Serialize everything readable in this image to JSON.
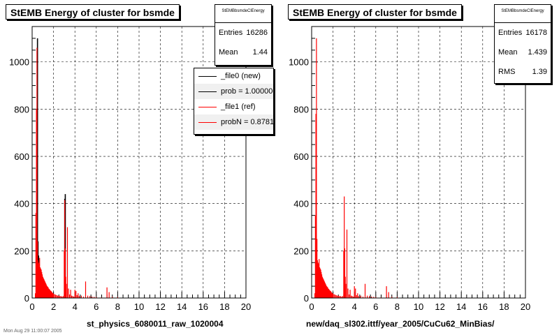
{
  "chart_data": [
    {
      "type": "bar",
      "title": "StEMB Energy of cluster for bsmde",
      "xlabel": "st_physics_6080011_raw_1020004",
      "ylabel": "",
      "xlim": [
        0,
        20
      ],
      "ylim": [
        0,
        1150
      ],
      "xticks": [
        0,
        2,
        4,
        6,
        8,
        10,
        12,
        14,
        16,
        18,
        20
      ],
      "yticks": [
        0,
        200,
        400,
        600,
        800,
        1000
      ],
      "grid": true,
      "stats": {
        "name": "StEMBbsmdeClEnergy",
        "rows": [
          {
            "label": "Entries",
            "value": "16286"
          },
          {
            "label": "Mean",
            "value": "1.44"
          }
        ]
      },
      "legend": {
        "placement": "top-right",
        "entries": [
          {
            "label": "_file0 (new)",
            "color": "#000000"
          },
          {
            "label": "prob = 1.000000",
            "color": "#000000"
          },
          {
            "label": "_file1 (ref)",
            "color": "#ff0000"
          },
          {
            "label": "probN = 0.878143",
            "color": "#ff0000"
          }
        ]
      },
      "series": [
        {
          "name": "_file0 (new)",
          "color": "#000000",
          "x": [
            0.45,
            0.5,
            0.55,
            0.6,
            3.05,
            3.1
          ],
          "values": [
            750,
            1100,
            240,
            180,
            420,
            440
          ]
        },
        {
          "name": "_file1 (ref)",
          "color": "#ff0000",
          "x": [
            0.3,
            0.35,
            0.4,
            0.45,
            0.5,
            0.55,
            0.6,
            0.65,
            0.7,
            0.75,
            0.8,
            0.85,
            0.9,
            0.95,
            1.0,
            1.05,
            1.1,
            1.15,
            1.2,
            1.25,
            1.3,
            1.35,
            1.4,
            1.45,
            1.5,
            1.55,
            1.6,
            1.65,
            1.7,
            1.75,
            1.8,
            1.85,
            1.9,
            1.95,
            2.0,
            2.1,
            2.2,
            2.3,
            2.4,
            2.5,
            2.6,
            2.7,
            2.8,
            2.9,
            3.0,
            3.05,
            3.1,
            3.15,
            3.2,
            3.3,
            3.4,
            3.5,
            3.6,
            3.7,
            3.8,
            3.9,
            4.0,
            4.1,
            4.2,
            4.3,
            4.4,
            4.6,
            4.8,
            5.0,
            5.2,
            5.4,
            5.6,
            5.8,
            6.0,
            6.5,
            7.0,
            7.2,
            7.5,
            8.0
          ],
          "values": [
            20,
            360,
            800,
            1060,
            240,
            160,
            150,
            145,
            170,
            130,
            125,
            120,
            110,
            100,
            90,
            85,
            80,
            75,
            70,
            65,
            60,
            55,
            50,
            48,
            45,
            40,
            38,
            35,
            32,
            30,
            28,
            25,
            22,
            20,
            18,
            16,
            14,
            12,
            10,
            10,
            8,
            8,
            6,
            8,
            200,
            415,
            210,
            90,
            60,
            300,
            40,
            15,
            35,
            10,
            8,
            6,
            35,
            30,
            12,
            20,
            8,
            10,
            6,
            70,
            10,
            8,
            6,
            5,
            4,
            3,
            45,
            25,
            5,
            4
          ]
        }
      ]
    },
    {
      "type": "bar",
      "title": "StEMB Energy of cluster for bsmde",
      "xlabel": "new/daq_sl302.ittf/year_2005/CuCu62_MinBias/",
      "ylabel": "",
      "xlim": [
        0,
        20
      ],
      "ylim": [
        0,
        1150
      ],
      "xticks": [
        0,
        2,
        4,
        6,
        8,
        10,
        12,
        14,
        16,
        18,
        20
      ],
      "yticks": [
        0,
        200,
        400,
        600,
        800,
        1000
      ],
      "grid": true,
      "stats": {
        "name": "StEMBbsmdeClEnergy",
        "rows": [
          {
            "label": "Entries",
            "value": "16178"
          },
          {
            "label": "Mean",
            "value": "1.439"
          },
          {
            "label": "RMS",
            "value": "1.39"
          }
        ]
      },
      "series": [
        {
          "name": "",
          "color": "#ff0000",
          "x": [
            0.3,
            0.35,
            0.4,
            0.45,
            0.5,
            0.55,
            0.6,
            0.65,
            0.7,
            0.75,
            0.8,
            0.85,
            0.9,
            0.95,
            1.0,
            1.05,
            1.1,
            1.15,
            1.2,
            1.25,
            1.3,
            1.35,
            1.4,
            1.45,
            1.5,
            1.55,
            1.6,
            1.65,
            1.7,
            1.75,
            1.8,
            1.85,
            1.9,
            1.95,
            2.0,
            2.1,
            2.2,
            2.3,
            2.4,
            2.5,
            2.6,
            2.7,
            2.8,
            2.9,
            3.0,
            3.05,
            3.1,
            3.15,
            3.2,
            3.3,
            3.4,
            3.5,
            3.6,
            3.7,
            3.8,
            3.9,
            4.0,
            4.1,
            4.2,
            4.3,
            4.4,
            4.6,
            4.8,
            5.0,
            5.2,
            5.4,
            5.6,
            5.8,
            6.0,
            6.5,
            7.0,
            7.2,
            7.5,
            8.0
          ],
          "values": [
            20,
            350,
            780,
            1100,
            250,
            160,
            150,
            145,
            165,
            130,
            125,
            120,
            110,
            100,
            90,
            85,
            80,
            75,
            70,
            65,
            60,
            55,
            50,
            48,
            45,
            40,
            38,
            35,
            32,
            30,
            28,
            25,
            22,
            20,
            18,
            16,
            14,
            12,
            10,
            10,
            8,
            8,
            6,
            8,
            200,
            430,
            210,
            90,
            60,
            290,
            40,
            15,
            35,
            10,
            8,
            6,
            50,
            40,
            12,
            20,
            8,
            10,
            6,
            60,
            10,
            8,
            6,
            5,
            4,
            3,
            50,
            25,
            5,
            4
          ]
        }
      ]
    }
  ],
  "footer": "Mon Aug 29 11:00:07 2005"
}
